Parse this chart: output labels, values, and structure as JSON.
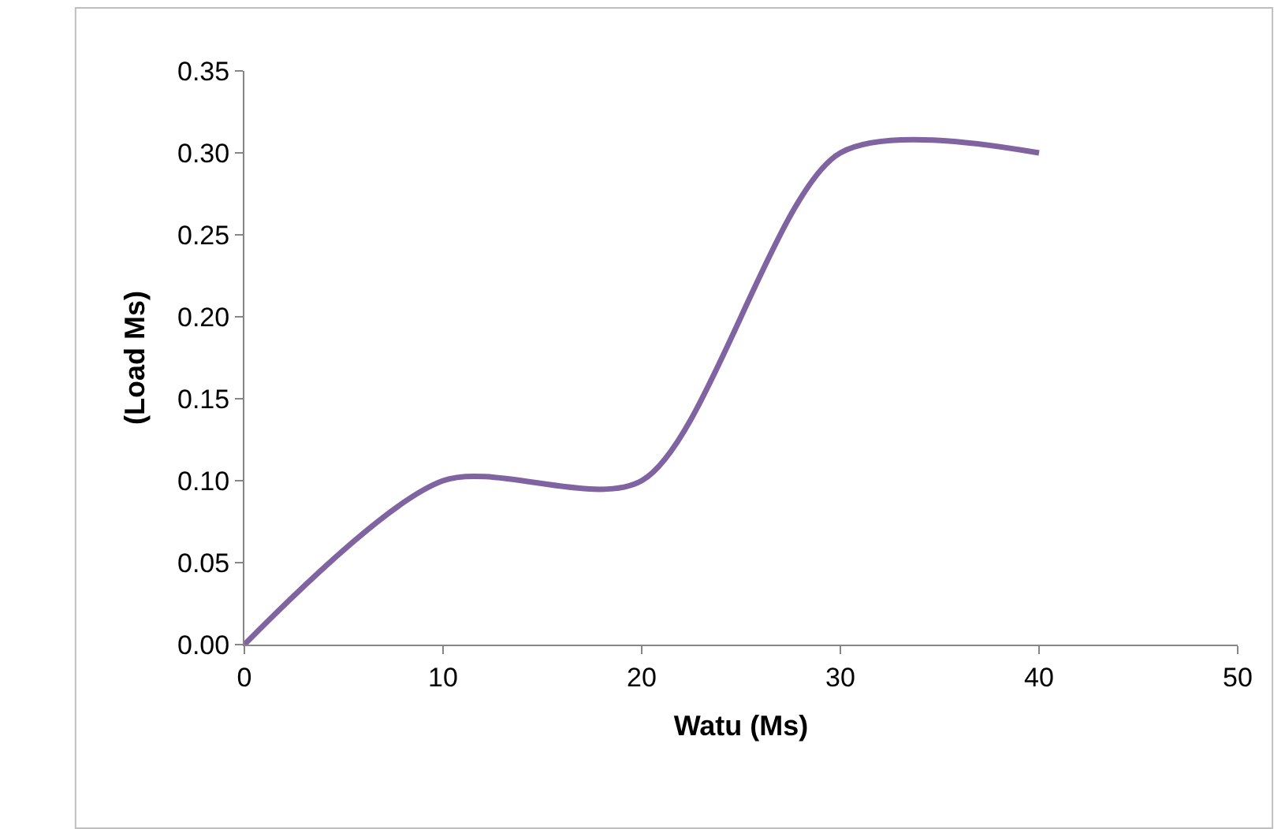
{
  "chart_data": {
    "type": "line",
    "xlabel": "Watu (Ms)",
    "ylabel": "(Load Ms)",
    "x": [
      0,
      10,
      20,
      30,
      40
    ],
    "series": [
      {
        "color": "#8064a2",
        "values": [
          0,
          0.1,
          0.1,
          0.3,
          0.3
        ]
      }
    ],
    "xlim": [
      0,
      50
    ],
    "xticks": [
      0,
      10,
      20,
      30,
      40,
      50
    ],
    "ylim": [
      0,
      0.35
    ],
    "yticks": [
      {
        "value": 0,
        "label": "0.00"
      },
      {
        "value": 0.05,
        "label": "0.05"
      },
      {
        "value": 0.1,
        "label": "0.10"
      },
      {
        "value": 0.15,
        "label": "0.15"
      },
      {
        "value": 0.2,
        "label": "0.20"
      },
      {
        "value": 0.25,
        "label": "0.25"
      },
      {
        "value": 0.3,
        "label": "0.30"
      },
      {
        "value": 0.35,
        "label": "0.35"
      }
    ],
    "marker": "none",
    "line_style": "solid"
  }
}
